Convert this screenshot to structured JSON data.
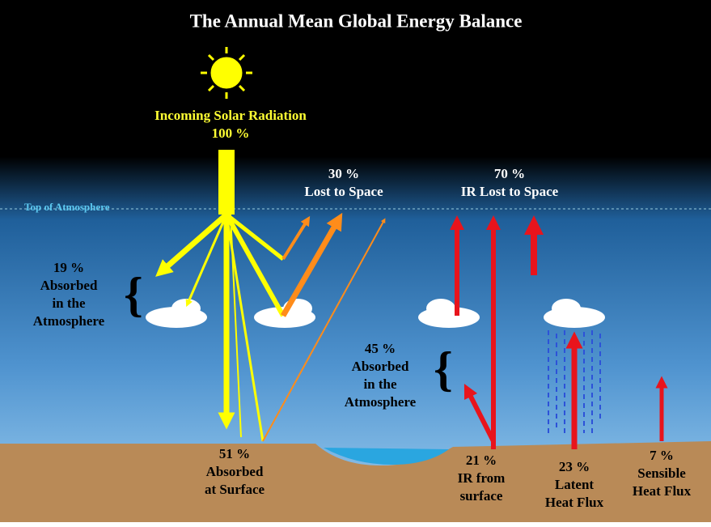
{
  "title": "The Annual Mean Global Energy Balance",
  "top_of_atmosphere": "Top of Atmosphere",
  "labels": [
    {
      "lines": [
        "Incoming Solar Radiation",
        "100 %"
      ]
    },
    {
      "lines": [
        "30 %",
        "Lost to Space"
      ]
    },
    {
      "lines": [
        "70 %",
        "IR Lost to Space"
      ]
    },
    {
      "lines": [
        "19 %",
        "Absorbed",
        "in the",
        "Atmosphere"
      ]
    },
    {
      "lines": [
        "45 %",
        "Absorbed",
        "in the",
        "Atmosphere"
      ]
    },
    {
      "lines": [
        "51 %",
        "Absorbed",
        "at Surface"
      ]
    },
    {
      "lines": [
        "21 %",
        "IR from",
        "surface"
      ]
    },
    {
      "lines": [
        "23 %",
        "Latent",
        "Heat Flux"
      ]
    },
    {
      "lines": [
        "7 %",
        "Sensible",
        "Heat Flux"
      ]
    }
  ]
}
